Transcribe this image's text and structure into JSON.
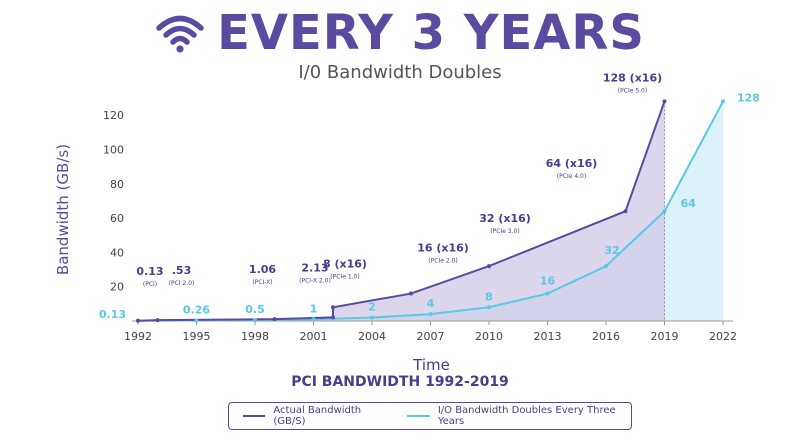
{
  "header": {
    "icon": "wifi-signal-icon",
    "headline": "EVERY 3 YEARS",
    "subtitle": "I/0 Bandwidth Doubles"
  },
  "colors": {
    "actual": "#5a4aa0",
    "doubling": "#5bc8e6",
    "actual_fill": "#cfc8e6",
    "doubling_fill": "#d6eef8",
    "axis_text": "#444444",
    "ylabel": "#5a4aa0"
  },
  "legend": {
    "actual_label": "Actual Bandwidth (GB/S)",
    "doubling_label": "I/O Bandwidth Doubles Every Three Years"
  },
  "chart_data": {
    "type": "area",
    "title": "PCI BANDWIDTH 1992-2019",
    "xlabel": "Time",
    "ylabel": "Bandwidth (GB/s)",
    "xlim": [
      1992,
      2022
    ],
    "ylim": [
      0,
      130
    ],
    "x_ticks": [
      1992,
      1995,
      1998,
      2001,
      2004,
      2007,
      2010,
      2013,
      2016,
      2019,
      2022
    ],
    "y_ticks": [
      20,
      40,
      60,
      80,
      100,
      120
    ],
    "grid": false,
    "legend_position": "bottom",
    "series": [
      {
        "name": "Actual Bandwidth (GB/S)",
        "x": [
          1992,
          1993,
          1999,
          2002,
          2002,
          2006,
          2010,
          2017,
          2019
        ],
        "y": [
          0.13,
          0.53,
          1.06,
          2.13,
          8,
          16,
          32,
          64,
          128
        ]
      },
      {
        "name": "I/O Bandwidth Doubles Every Three Years",
        "x": [
          1992,
          1995,
          1998,
          2001,
          2004,
          2007,
          2010,
          2013,
          2016,
          2019,
          2022
        ],
        "y": [
          0.13,
          0.26,
          0.5,
          1,
          2,
          4,
          8,
          16,
          32,
          64,
          128
        ]
      }
    ],
    "actual_annotations": [
      {
        "x": 1992,
        "y": 0.13,
        "main": "0.13",
        "sub": "(PCI)"
      },
      {
        "x": 1993,
        "y": 0.53,
        "main": ".53",
        "sub": "(PCI 2.0)"
      },
      {
        "x": 1999,
        "y": 1.06,
        "main": "1.06",
        "sub": "(PCI-X)"
      },
      {
        "x": 2002,
        "y": 2.13,
        "main": "2.13",
        "sub": "(PCI-X 2.0)"
      },
      {
        "x": 2002,
        "y": 8,
        "main": "8 (x16)",
        "sub": "(PCIe 1.0)"
      },
      {
        "x": 2006,
        "y": 16,
        "main": "16 (x16)",
        "sub": "(PCIe 2.0)"
      },
      {
        "x": 2010,
        "y": 32,
        "main": "32 (x16)",
        "sub": "(PCIe 3.0)"
      },
      {
        "x": 2017,
        "y": 64,
        "main": "64 (x16)",
        "sub": "(PCIe 4.0)"
      },
      {
        "x": 2019,
        "y": 128,
        "main": "128 (x16)",
        "sub": "(PCIe 5.0)"
      }
    ],
    "doubling_labels": [
      "0.13",
      "0.26",
      "0.5",
      "1",
      "2",
      "4",
      "8",
      "16",
      "32",
      "64",
      "128"
    ]
  }
}
